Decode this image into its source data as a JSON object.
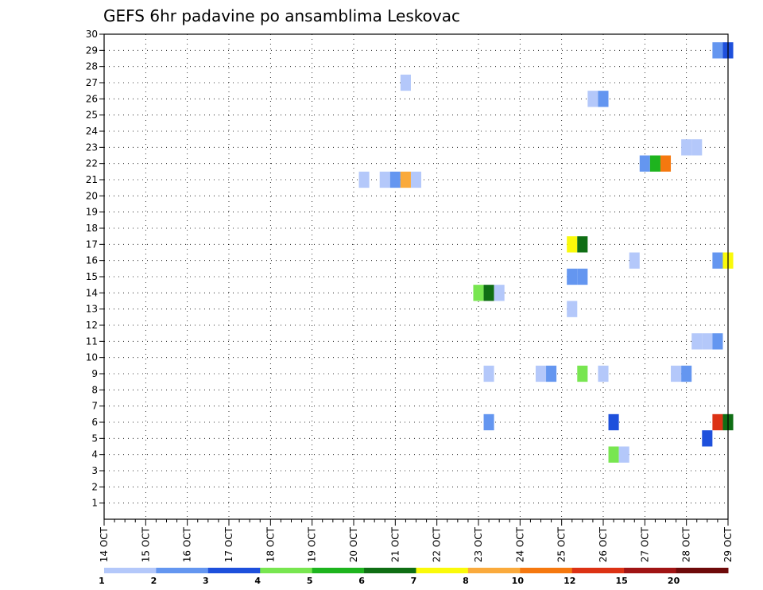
{
  "chart_data": {
    "type": "heatmap",
    "title": "GEFS 6hr padavine po ansamblima Leskovac",
    "xlabel": "",
    "ylabel": "",
    "x_start": "2023-10-14 00",
    "x_end": "2023-10-29 00",
    "x_tick_labels": [
      "14 OCT",
      "15 OCT",
      "16 OCT",
      "17 OCT",
      "18 OCT",
      "19 OCT",
      "20 OCT",
      "21 OCT",
      "22 OCT",
      "23 OCT",
      "24 OCT",
      "25 OCT",
      "26 OCT",
      "27 OCT",
      "28 OCT",
      "29 OCT"
    ],
    "y_tick_labels": [
      "1",
      "2",
      "3",
      "4",
      "5",
      "6",
      "7",
      "8",
      "9",
      "10",
      "11",
      "12",
      "13",
      "14",
      "15",
      "16",
      "17",
      "18",
      "19",
      "20",
      "21",
      "22",
      "23",
      "24",
      "25",
      "26",
      "27",
      "28",
      "29",
      "30"
    ],
    "ylim": [
      0,
      30
    ],
    "grid": true,
    "color_scale": {
      "colors": [
        "#b4c8fa",
        "#6496f0",
        "#1e50dc",
        "#78e650",
        "#1eb41e",
        "#0f6e14",
        "#fafa0a",
        "#faaa3c",
        "#f5780f",
        "#dc3214",
        "#a01414",
        "#6e0a0a"
      ],
      "labels": [
        "1",
        "2",
        "3",
        "4",
        "5",
        "6",
        "7",
        "8",
        "10",
        "12",
        "15",
        "20"
      ]
    },
    "cells": [
      {
        "time": "2023-10-28 18",
        "member": 29,
        "color": "#6496f0"
      },
      {
        "time": "2023-10-29 00",
        "member": 29,
        "color": "#1e50dc"
      },
      {
        "time": "2023-10-21 06",
        "member": 27,
        "color": "#b4c8fa"
      },
      {
        "time": "2023-10-25 18",
        "member": 26,
        "color": "#b4c8fa"
      },
      {
        "time": "2023-10-26 00",
        "member": 26,
        "color": "#6496f0"
      },
      {
        "time": "2023-10-28 00",
        "member": 23,
        "color": "#b4c8fa"
      },
      {
        "time": "2023-10-28 06",
        "member": 23,
        "color": "#b4c8fa"
      },
      {
        "time": "2023-10-27 00",
        "member": 22,
        "color": "#6496f0"
      },
      {
        "time": "2023-10-27 06",
        "member": 22,
        "color": "#1eb41e"
      },
      {
        "time": "2023-10-27 12",
        "member": 22,
        "color": "#f5780f"
      },
      {
        "time": "2023-10-20 06",
        "member": 21,
        "color": "#b4c8fa"
      },
      {
        "time": "2023-10-20 18",
        "member": 21,
        "color": "#b4c8fa"
      },
      {
        "time": "2023-10-21 00",
        "member": 21,
        "color": "#6496f0"
      },
      {
        "time": "2023-10-21 06",
        "member": 21,
        "color": "#faaa3c"
      },
      {
        "time": "2023-10-21 12",
        "member": 21,
        "color": "#b4c8fa"
      },
      {
        "time": "2023-10-25 06",
        "member": 17,
        "color": "#fafa0a"
      },
      {
        "time": "2023-10-25 12",
        "member": 17,
        "color": "#0f6e14"
      },
      {
        "time": "2023-10-26 18",
        "member": 16,
        "color": "#b4c8fa"
      },
      {
        "time": "2023-10-28 18",
        "member": 16,
        "color": "#6496f0"
      },
      {
        "time": "2023-10-29 00",
        "member": 16,
        "color": "#fafa0a"
      },
      {
        "time": "2023-10-25 06",
        "member": 15,
        "color": "#6496f0"
      },
      {
        "time": "2023-10-25 12",
        "member": 15,
        "color": "#6496f0"
      },
      {
        "time": "2023-10-23 00",
        "member": 14,
        "color": "#78e650"
      },
      {
        "time": "2023-10-23 06",
        "member": 14,
        "color": "#0f6e14"
      },
      {
        "time": "2023-10-23 12",
        "member": 14,
        "color": "#b4c8fa"
      },
      {
        "time": "2023-10-25 06",
        "member": 13,
        "color": "#b4c8fa"
      },
      {
        "time": "2023-10-28 06",
        "member": 11,
        "color": "#b4c8fa"
      },
      {
        "time": "2023-10-28 12",
        "member": 11,
        "color": "#b4c8fa"
      },
      {
        "time": "2023-10-28 18",
        "member": 11,
        "color": "#6496f0"
      },
      {
        "time": "2023-10-23 06",
        "member": 9,
        "color": "#b4c8fa"
      },
      {
        "time": "2023-10-24 12",
        "member": 9,
        "color": "#b4c8fa"
      },
      {
        "time": "2023-10-24 18",
        "member": 9,
        "color": "#6496f0"
      },
      {
        "time": "2023-10-25 12",
        "member": 9,
        "color": "#78e650"
      },
      {
        "time": "2023-10-26 00",
        "member": 9,
        "color": "#b4c8fa"
      },
      {
        "time": "2023-10-27 18",
        "member": 9,
        "color": "#b4c8fa"
      },
      {
        "time": "2023-10-28 00",
        "member": 9,
        "color": "#6496f0"
      },
      {
        "time": "2023-10-23 06",
        "member": 6,
        "color": "#6496f0"
      },
      {
        "time": "2023-10-26 06",
        "member": 6,
        "color": "#1e50dc"
      },
      {
        "time": "2023-10-28 18",
        "member": 6,
        "color": "#dc3214"
      },
      {
        "time": "2023-10-29 00",
        "member": 6,
        "color": "#0f6e14"
      },
      {
        "time": "2023-10-28 12",
        "member": 5,
        "color": "#1e50dc"
      },
      {
        "time": "2023-10-26 06",
        "member": 4,
        "color": "#78e650"
      },
      {
        "time": "2023-10-26 12",
        "member": 4,
        "color": "#b4c8fa"
      }
    ]
  }
}
